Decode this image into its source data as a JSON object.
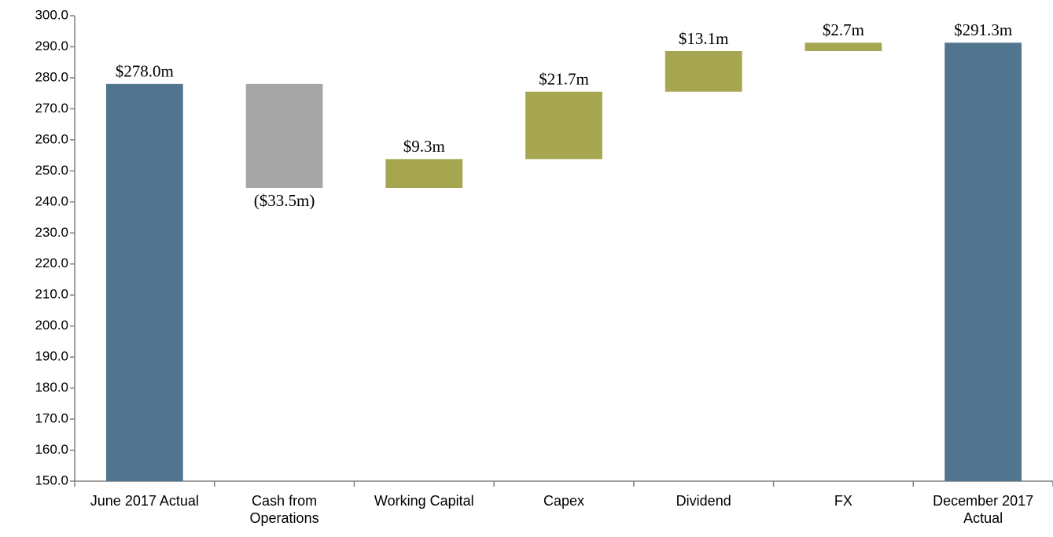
{
  "chart_data": {
    "type": "waterfall",
    "categories": [
      "June 2017 Actual",
      "Cash from Operations",
      "Working Capital",
      "Capex",
      "Dividend",
      "FX",
      "December 2017 Actual"
    ],
    "values": [
      278.0,
      -33.5,
      9.3,
      21.7,
      13.1,
      2.7,
      291.3
    ],
    "value_labels": [
      "$278.0m",
      "($33.5m)",
      "$9.3m",
      "$21.7m",
      "$13.1m",
      "$2.7m",
      "$291.3m"
    ],
    "totals": [
      true,
      false,
      false,
      false,
      false,
      false,
      true
    ],
    "colors": [
      "#52758f",
      "#a6a6a6",
      "#a6a651",
      "#a6a651",
      "#a6a651",
      "#a6a651",
      "#52758f"
    ],
    "ylim": [
      150,
      300
    ],
    "yticks": [
      {
        "value": 150,
        "label": "150.0"
      },
      {
        "value": 160,
        "label": "160.0"
      },
      {
        "value": 170,
        "label": "170.0"
      },
      {
        "value": 180,
        "label": "180.0"
      },
      {
        "value": 190,
        "label": "190.0"
      },
      {
        "value": 200,
        "label": "200.0"
      },
      {
        "value": 210,
        "label": "210.0"
      },
      {
        "value": 220,
        "label": "220.0"
      },
      {
        "value": 230,
        "label": "230.0"
      },
      {
        "value": 240,
        "label": "240.0"
      },
      {
        "value": 250,
        "label": "250.0"
      },
      {
        "value": 260,
        "label": "260.0"
      },
      {
        "value": 270,
        "label": "270.0"
      },
      {
        "value": 280,
        "label": "280.0"
      },
      {
        "value": 290,
        "label": "290.0"
      },
      {
        "value": 300,
        "label": "300.0"
      }
    ],
    "grid": false
  }
}
